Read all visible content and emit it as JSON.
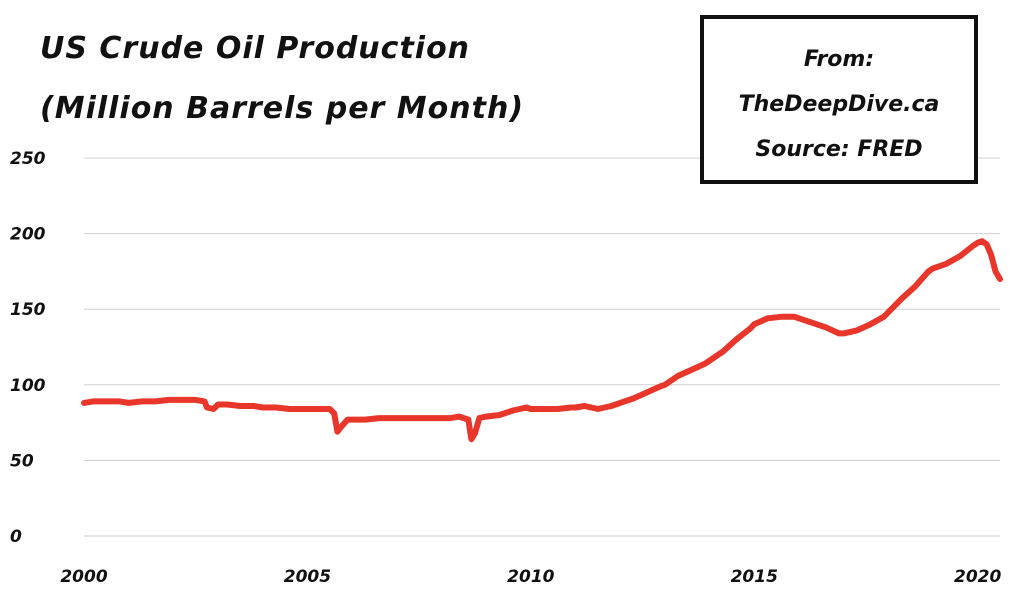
{
  "chart_data": {
    "type": "line",
    "title": "US Crude Oil Production",
    "subtitle": "(Million Barrels per Month)",
    "xlabel": "",
    "ylabel": "",
    "xlim": [
      2000,
      2020.5
    ],
    "ylim": [
      0,
      250
    ],
    "yticks": [
      0,
      50,
      100,
      150,
      200,
      250
    ],
    "xticks": [
      2000,
      2005,
      2010,
      2015,
      2020
    ],
    "ytick_labels": [
      "0",
      "50",
      "100",
      "150",
      "200",
      "250"
    ],
    "xtick_labels": [
      "2000",
      "2005",
      "2010",
      "2015",
      "2020"
    ],
    "grid": "horizontal",
    "line_color": "#e8362b",
    "source_box": {
      "line1": "From:",
      "line2": "TheDeepDive.ca",
      "line3": "Source: FRED"
    },
    "series": [
      {
        "x": [
          2000.0,
          2000.2,
          2000.5,
          2000.8,
          2001.0,
          2001.3,
          2001.6,
          2001.9,
          2002.2,
          2002.5,
          2002.7,
          2002.75,
          2002.9,
          2003.0,
          2003.2,
          2003.5,
          2003.8,
          2004.0,
          2004.3,
          2004.6,
          2004.9,
          2005.0,
          2005.2,
          2005.5,
          2005.6,
          2005.67,
          2005.75,
          2005.9,
          2006.0,
          2006.3,
          2006.6,
          2006.9,
          2007.2,
          2007.5,
          2007.8,
          2008.0,
          2008.2,
          2008.4,
          2008.6,
          2008.67,
          2008.75,
          2008.85,
          2009.0,
          2009.3,
          2009.6,
          2009.9,
          2010.0,
          2010.3,
          2010.6,
          2010.9,
          2011.0,
          2011.2,
          2011.5,
          2011.8,
          2012.0,
          2012.3,
          2012.6,
          2012.9,
          2013.0,
          2013.3,
          2013.6,
          2013.9,
          2014.0,
          2014.3,
          2014.6,
          2014.9,
          2015.0,
          2015.3,
          2015.6,
          2015.9,
          2016.0,
          2016.3,
          2016.6,
          2016.9,
          2017.0,
          2017.3,
          2017.6,
          2017.9,
          2018.0,
          2018.3,
          2018.6,
          2018.9,
          2019.0,
          2019.3,
          2019.6,
          2019.9,
          2020.0,
          2020.1,
          2020.2,
          2020.3,
          2020.4,
          2020.5
        ],
        "y": [
          88,
          89,
          89,
          89,
          88,
          89,
          89,
          90,
          90,
          90,
          89,
          85,
          84,
          87,
          87,
          86,
          86,
          85,
          85,
          84,
          84,
          84,
          84,
          84,
          81,
          69,
          72,
          77,
          77,
          77,
          78,
          78,
          78,
          78,
          78,
          78,
          78,
          79,
          77,
          64,
          68,
          78,
          79,
          80,
          83,
          85,
          84,
          84,
          84,
          85,
          85,
          86,
          84,
          86,
          88,
          91,
          95,
          99,
          100,
          106,
          110,
          114,
          116,
          122,
          130,
          137,
          140,
          144,
          145,
          145,
          144,
          141,
          138,
          134,
          134,
          136,
          140,
          145,
          148,
          157,
          165,
          175,
          177,
          180,
          185,
          192,
          194,
          195,
          193,
          186,
          175,
          170
        ]
      }
    ]
  }
}
